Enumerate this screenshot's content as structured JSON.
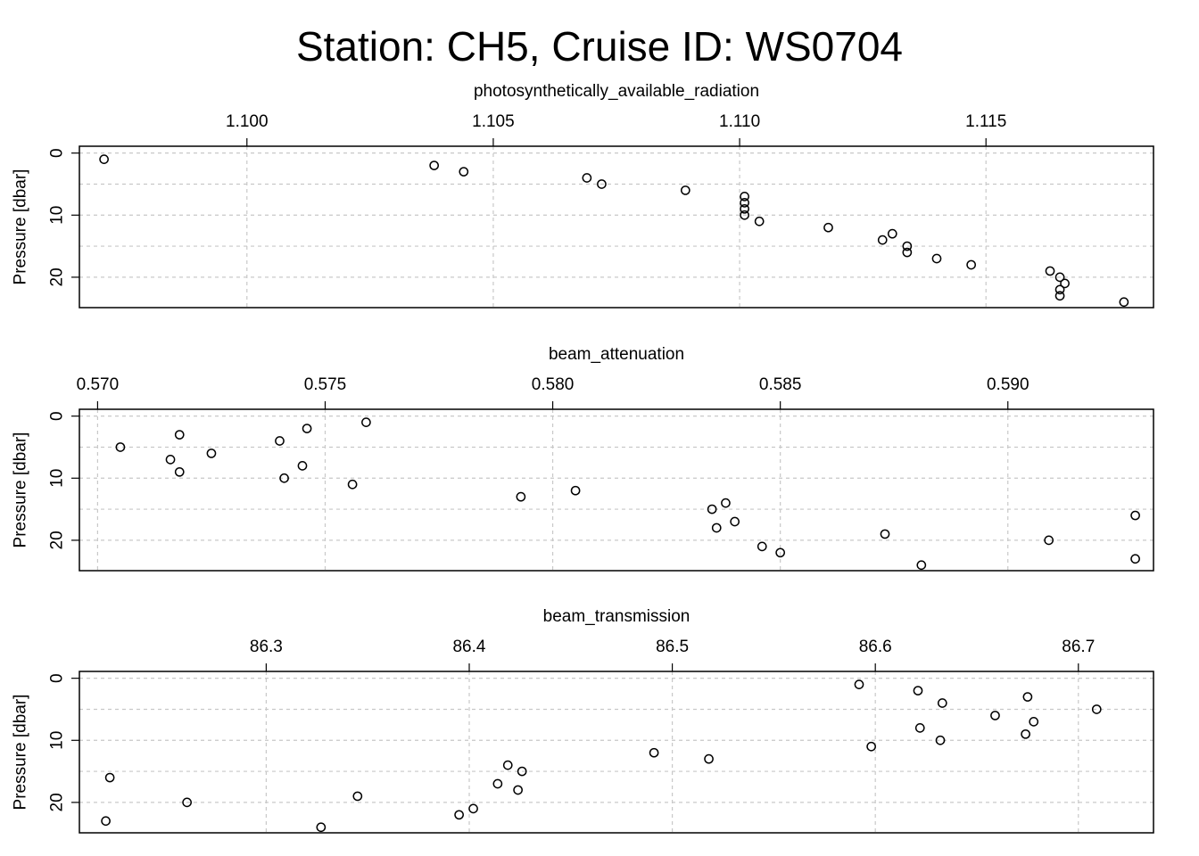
{
  "title": "Station: CH5, Cruise ID: WS0704",
  "chart_data": [
    {
      "type": "scatter",
      "title": "photosynthetically_available_radiation",
      "ylabel": "Pressure [dbar]",
      "xlim": [
        1.0966,
        1.1184
      ],
      "ylim": [
        24.9,
        -1.1
      ],
      "xticks": [
        1.1,
        1.105,
        1.11,
        1.115
      ],
      "xtick_labels": [
        "1.100",
        "1.105",
        "1.110",
        "1.115"
      ],
      "yticks": [
        0,
        10,
        20
      ],
      "ytick_labels": [
        "0",
        "10",
        "20"
      ],
      "ygrid": [
        0,
        5,
        10,
        15,
        20,
        25
      ],
      "grid": true,
      "points": [
        {
          "x": 1.0971,
          "y": 1
        },
        {
          "x": 1.1038,
          "y": 2
        },
        {
          "x": 1.1044,
          "y": 3
        },
        {
          "x": 1.1069,
          "y": 4
        },
        {
          "x": 1.1072,
          "y": 5
        },
        {
          "x": 1.1089,
          "y": 6
        },
        {
          "x": 1.1101,
          "y": 7
        },
        {
          "x": 1.1101,
          "y": 8
        },
        {
          "x": 1.1101,
          "y": 9
        },
        {
          "x": 1.1101,
          "y": 10
        },
        {
          "x": 1.1104,
          "y": 11
        },
        {
          "x": 1.1118,
          "y": 12
        },
        {
          "x": 1.1131,
          "y": 13
        },
        {
          "x": 1.1129,
          "y": 14
        },
        {
          "x": 1.1134,
          "y": 15
        },
        {
          "x": 1.1134,
          "y": 16
        },
        {
          "x": 1.114,
          "y": 17
        },
        {
          "x": 1.1147,
          "y": 18
        },
        {
          "x": 1.1163,
          "y": 19
        },
        {
          "x": 1.1165,
          "y": 20
        },
        {
          "x": 1.1166,
          "y": 21
        },
        {
          "x": 1.1165,
          "y": 22
        },
        {
          "x": 1.1165,
          "y": 23
        },
        {
          "x": 1.1178,
          "y": 24
        }
      ]
    },
    {
      "type": "scatter",
      "title": "beam_attenuation",
      "ylabel": "Pressure [dbar]",
      "xlim": [
        0.5696,
        0.5932
      ],
      "ylim": [
        24.9,
        -1.1
      ],
      "xticks": [
        0.57,
        0.575,
        0.58,
        0.585,
        0.59
      ],
      "xtick_labels": [
        "0.570",
        "0.575",
        "0.580",
        "0.585",
        "0.590"
      ],
      "yticks": [
        0,
        10,
        20
      ],
      "ytick_labels": [
        "0",
        "10",
        "20"
      ],
      "ygrid": [
        0,
        5,
        10,
        15,
        20,
        25
      ],
      "grid": true,
      "points": [
        {
          "x": 0.5759,
          "y": 1
        },
        {
          "x": 0.5746,
          "y": 2
        },
        {
          "x": 0.5718,
          "y": 3
        },
        {
          "x": 0.574,
          "y": 4
        },
        {
          "x": 0.5705,
          "y": 5
        },
        {
          "x": 0.5725,
          "y": 6
        },
        {
          "x": 0.5716,
          "y": 7
        },
        {
          "x": 0.5745,
          "y": 8
        },
        {
          "x": 0.5718,
          "y": 9
        },
        {
          "x": 0.5741,
          "y": 10
        },
        {
          "x": 0.5756,
          "y": 11
        },
        {
          "x": 0.5805,
          "y": 12
        },
        {
          "x": 0.5793,
          "y": 13
        },
        {
          "x": 0.5838,
          "y": 14
        },
        {
          "x": 0.5835,
          "y": 15
        },
        {
          "x": 0.5928,
          "y": 16
        },
        {
          "x": 0.584,
          "y": 17
        },
        {
          "x": 0.5836,
          "y": 18
        },
        {
          "x": 0.5873,
          "y": 19
        },
        {
          "x": 0.5909,
          "y": 20
        },
        {
          "x": 0.5846,
          "y": 21
        },
        {
          "x": 0.585,
          "y": 22
        },
        {
          "x": 0.5928,
          "y": 23
        },
        {
          "x": 0.5881,
          "y": 24
        }
      ]
    },
    {
      "type": "scatter",
      "title": "beam_transmission",
      "ylabel": "Pressure [dbar]",
      "xlim": [
        86.208,
        86.737
      ],
      "ylim": [
        24.9,
        -1.1
      ],
      "xticks": [
        86.3,
        86.4,
        86.5,
        86.6,
        86.7
      ],
      "xtick_labels": [
        "86.3",
        "86.4",
        "86.5",
        "86.6",
        "86.7"
      ],
      "yticks": [
        0,
        10,
        20
      ],
      "ytick_labels": [
        "0",
        "10",
        "20"
      ],
      "ygrid": [
        0,
        5,
        10,
        15,
        20,
        25
      ],
      "grid": true,
      "points": [
        {
          "x": 86.592,
          "y": 1
        },
        {
          "x": 86.621,
          "y": 2
        },
        {
          "x": 86.675,
          "y": 3
        },
        {
          "x": 86.633,
          "y": 4
        },
        {
          "x": 86.709,
          "y": 5
        },
        {
          "x": 86.659,
          "y": 6
        },
        {
          "x": 86.678,
          "y": 7
        },
        {
          "x": 86.622,
          "y": 8
        },
        {
          "x": 86.674,
          "y": 9
        },
        {
          "x": 86.632,
          "y": 10
        },
        {
          "x": 86.598,
          "y": 11
        },
        {
          "x": 86.491,
          "y": 12
        },
        {
          "x": 86.518,
          "y": 13
        },
        {
          "x": 86.419,
          "y": 14
        },
        {
          "x": 86.426,
          "y": 15
        },
        {
          "x": 86.223,
          "y": 16
        },
        {
          "x": 86.414,
          "y": 17
        },
        {
          "x": 86.424,
          "y": 18
        },
        {
          "x": 86.345,
          "y": 19
        },
        {
          "x": 86.261,
          "y": 20
        },
        {
          "x": 86.402,
          "y": 21
        },
        {
          "x": 86.395,
          "y": 22
        },
        {
          "x": 86.221,
          "y": 23
        },
        {
          "x": 86.327,
          "y": 24
        }
      ]
    }
  ]
}
